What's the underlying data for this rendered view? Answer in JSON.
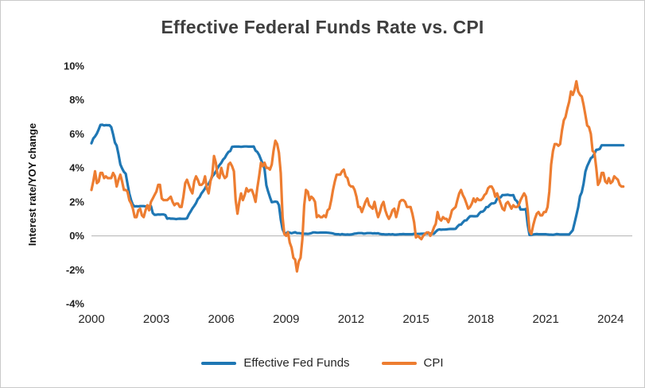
{
  "chart_data": {
    "type": "line",
    "title": "Effective Federal Funds Rate vs. CPI",
    "xlabel": "",
    "ylabel": "Interest rate/YOY change",
    "ylim": [
      -4,
      10
    ],
    "xlim": [
      2000,
      2025
    ],
    "yticks": [
      {
        "value": -4,
        "label": "-4%"
      },
      {
        "value": -2,
        "label": "-2%"
      },
      {
        "value": 0,
        "label": "0%"
      },
      {
        "value": 2,
        "label": "2%"
      },
      {
        "value": 4,
        "label": "4%"
      },
      {
        "value": 6,
        "label": "6%"
      },
      {
        "value": 8,
        "label": "8%"
      },
      {
        "value": 10,
        "label": "10%"
      }
    ],
    "xticks": [
      2000,
      2003,
      2006,
      2009,
      2012,
      2015,
      2018,
      2021,
      2024
    ],
    "grid": "zero-line-only",
    "legend_position": "bottom",
    "axis_line_color": "#bfbfbf",
    "background_color": "#ffffff",
    "x_start": 2000,
    "x_frequency": "monthly",
    "series": [
      {
        "name": "Effective Fed Funds",
        "color": "#1F77B4",
        "values": [
          5.45,
          5.73,
          5.85,
          6.02,
          6.27,
          6.53,
          6.54,
          6.5,
          6.52,
          6.51,
          6.51,
          6.4,
          5.98,
          5.49,
          5.31,
          4.8,
          4.21,
          3.97,
          3.77,
          3.65,
          3.07,
          2.49,
          2.09,
          1.82,
          1.73,
          1.74,
          1.73,
          1.75,
          1.75,
          1.75,
          1.73,
          1.74,
          1.75,
          1.75,
          1.34,
          1.24,
          1.24,
          1.26,
          1.25,
          1.26,
          1.26,
          1.22,
          1.01,
          1.03,
          1.01,
          1.01,
          1.0,
          0.98,
          1.0,
          1.01,
          1.0,
          1.0,
          1.0,
          1.03,
          1.26,
          1.43,
          1.61,
          1.76,
          1.93,
          2.16,
          2.28,
          2.5,
          2.63,
          2.79,
          3.0,
          3.04,
          3.26,
          3.5,
          3.62,
          3.78,
          4.0,
          4.16,
          4.29,
          4.49,
          4.59,
          4.79,
          4.94,
          4.99,
          5.24,
          5.25,
          5.25,
          5.25,
          5.25,
          5.24,
          5.25,
          5.26,
          5.26,
          5.25,
          5.25,
          5.25,
          5.26,
          5.02,
          4.94,
          4.76,
          4.49,
          4.24,
          3.94,
          2.98,
          2.61,
          2.28,
          1.98,
          2.0,
          2.01,
          2.0,
          1.81,
          0.97,
          0.39,
          0.16,
          0.15,
          0.22,
          0.18,
          0.15,
          0.18,
          0.21,
          0.16,
          0.16,
          0.15,
          0.12,
          0.12,
          0.12,
          0.11,
          0.13,
          0.16,
          0.2,
          0.2,
          0.18,
          0.18,
          0.19,
          0.19,
          0.19,
          0.19,
          0.18,
          0.17,
          0.16,
          0.14,
          0.1,
          0.09,
          0.09,
          0.07,
          0.1,
          0.08,
          0.07,
          0.08,
          0.07,
          0.08,
          0.1,
          0.13,
          0.14,
          0.16,
          0.16,
          0.16,
          0.13,
          0.14,
          0.16,
          0.16,
          0.16,
          0.14,
          0.15,
          0.14,
          0.15,
          0.11,
          0.09,
          0.09,
          0.08,
          0.08,
          0.09,
          0.08,
          0.09,
          0.07,
          0.07,
          0.08,
          0.09,
          0.09,
          0.1,
          0.09,
          0.09,
          0.09,
          0.09,
          0.09,
          0.12,
          0.11,
          0.11,
          0.11,
          0.12,
          0.12,
          0.13,
          0.13,
          0.14,
          0.14,
          0.12,
          0.12,
          0.24,
          0.34,
          0.38,
          0.36,
          0.37,
          0.37,
          0.38,
          0.39,
          0.4,
          0.4,
          0.4,
          0.41,
          0.54,
          0.65,
          0.66,
          0.79,
          0.9,
          0.91,
          1.04,
          1.15,
          1.16,
          1.15,
          1.15,
          1.16,
          1.3,
          1.41,
          1.42,
          1.51,
          1.69,
          1.7,
          1.82,
          1.91,
          1.91,
          1.95,
          2.19,
          2.2,
          2.27,
          2.4,
          2.4,
          2.41,
          2.42,
          2.39,
          2.38,
          2.4,
          2.13,
          2.04,
          1.83,
          1.55,
          1.55,
          1.55,
          1.58,
          0.65,
          0.05,
          0.05,
          0.08,
          0.09,
          0.1,
          0.09,
          0.09,
          0.09,
          0.09,
          0.09,
          0.08,
          0.07,
          0.07,
          0.06,
          0.08,
          0.1,
          0.09,
          0.08,
          0.08,
          0.08,
          0.08,
          0.08,
          0.08,
          0.2,
          0.33,
          0.77,
          1.21,
          1.68,
          2.33,
          2.56,
          3.08,
          3.78,
          4.1,
          4.33,
          4.57,
          4.65,
          4.83,
          5.06,
          5.08,
          5.12,
          5.33,
          5.33,
          5.33,
          5.33,
          5.33,
          5.33,
          5.33,
          5.33,
          5.33,
          5.33,
          5.33,
          5.33,
          5.33
        ]
      },
      {
        "name": "CPI",
        "color": "#ED7D31",
        "values": [
          2.7,
          3.2,
          3.8,
          3.1,
          3.2,
          3.7,
          3.7,
          3.4,
          3.5,
          3.4,
          3.4,
          3.4,
          3.7,
          3.5,
          2.9,
          3.3,
          3.6,
          3.2,
          2.7,
          2.7,
          2.6,
          2.1,
          1.9,
          1.6,
          1.1,
          1.1,
          1.5,
          1.6,
          1.2,
          1.1,
          1.5,
          1.8,
          1.5,
          2.0,
          2.2,
          2.4,
          2.6,
          3.0,
          3.0,
          2.2,
          2.1,
          2.1,
          2.1,
          2.2,
          2.3,
          2.0,
          1.8,
          1.9,
          1.9,
          1.7,
          1.7,
          2.3,
          3.1,
          3.3,
          3.0,
          2.7,
          2.5,
          3.2,
          3.5,
          3.3,
          3.0,
          3.0,
          3.1,
          3.5,
          2.8,
          2.5,
          3.2,
          3.6,
          4.7,
          4.3,
          3.5,
          3.4,
          4.0,
          3.6,
          3.4,
          3.5,
          4.2,
          4.3,
          4.1,
          3.8,
          2.1,
          1.3,
          2.0,
          2.5,
          2.1,
          2.4,
          2.8,
          2.6,
          2.7,
          2.7,
          2.4,
          2.0,
          2.8,
          3.5,
          4.3,
          4.1,
          4.3,
          4.0,
          4.0,
          3.9,
          4.2,
          5.0,
          5.6,
          5.4,
          4.9,
          3.7,
          1.1,
          0.1,
          0.0,
          0.2,
          -0.4,
          -0.7,
          -1.3,
          -1.4,
          -2.1,
          -1.5,
          -1.3,
          -0.2,
          1.8,
          2.7,
          2.6,
          2.1,
          2.3,
          2.2,
          2.0,
          1.1,
          1.2,
          1.1,
          1.1,
          1.2,
          1.1,
          1.5,
          1.6,
          2.1,
          2.7,
          3.2,
          3.6,
          3.6,
          3.6,
          3.8,
          3.9,
          3.5,
          3.4,
          3.0,
          2.9,
          2.9,
          2.7,
          2.3,
          1.7,
          1.7,
          1.4,
          1.7,
          2.0,
          2.2,
          1.8,
          1.7,
          1.6,
          2.0,
          1.5,
          1.1,
          1.4,
          1.8,
          2.0,
          1.5,
          1.2,
          1.0,
          1.2,
          1.5,
          1.6,
          1.1,
          1.5,
          2.0,
          2.1,
          2.1,
          2.0,
          1.7,
          1.7,
          1.7,
          1.3,
          0.8,
          -0.1,
          0.0,
          -0.1,
          -0.2,
          0.0,
          0.1,
          0.2,
          0.2,
          0.0,
          0.2,
          0.5,
          0.7,
          1.4,
          1.0,
          0.9,
          1.1,
          1.0,
          1.0,
          0.8,
          1.1,
          1.5,
          1.6,
          1.7,
          2.1,
          2.5,
          2.7,
          2.4,
          2.2,
          1.9,
          1.6,
          1.7,
          1.9,
          2.2,
          2.0,
          2.2,
          2.1,
          2.1,
          2.2,
          2.4,
          2.5,
          2.8,
          2.9,
          2.9,
          2.7,
          2.3,
          2.5,
          2.2,
          1.9,
          1.6,
          1.5,
          1.9,
          2.0,
          1.8,
          1.6,
          1.8,
          1.7,
          1.7,
          1.8,
          2.1,
          2.3,
          2.5,
          2.3,
          1.5,
          0.3,
          0.1,
          0.6,
          1.0,
          1.3,
          1.4,
          1.2,
          1.2,
          1.4,
          1.4,
          1.7,
          2.6,
          4.2,
          5.0,
          5.4,
          5.4,
          5.3,
          5.4,
          6.2,
          6.8,
          7.0,
          7.5,
          7.9,
          8.5,
          8.3,
          8.6,
          9.1,
          8.5,
          8.3,
          8.2,
          7.7,
          7.1,
          6.5,
          6.4,
          6.0,
          5.0,
          4.9,
          4.0,
          3.0,
          3.2,
          3.7,
          3.7,
          3.2,
          3.1,
          3.4,
          3.1,
          3.2,
          3.5,
          3.4,
          3.3,
          3.0,
          2.9,
          2.9
        ]
      }
    ]
  }
}
